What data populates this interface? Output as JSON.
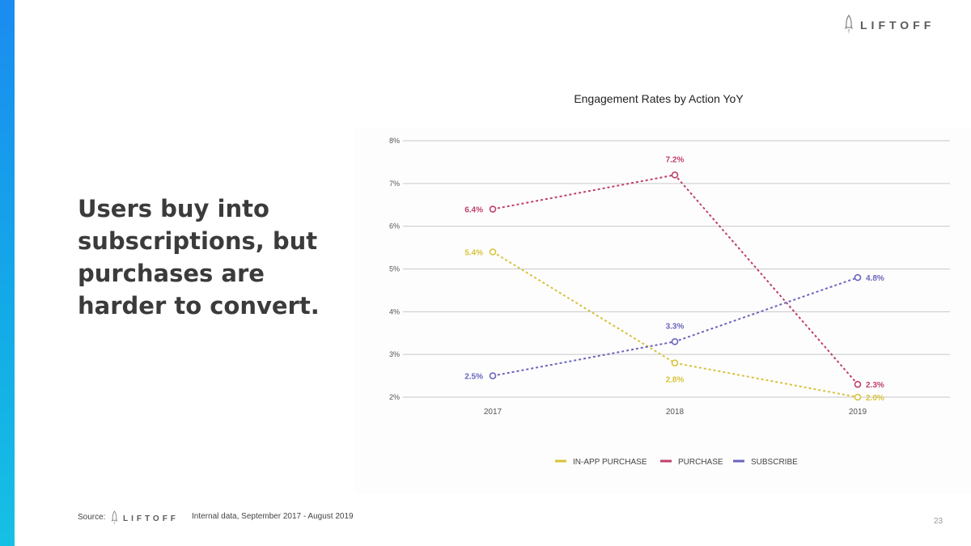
{
  "brand": {
    "name": "LIFTOFF",
    "accent_color": "#1b8cf0"
  },
  "headline": "Users buy into subscriptions, but purchases are harder to convert.",
  "chart_data": {
    "type": "line",
    "title": "Engagement Rates by Action YoY",
    "categories": [
      "2017",
      "2018",
      "2019"
    ],
    "ylim": [
      2,
      8
    ],
    "y_ticks": [
      "2%",
      "3%",
      "4%",
      "5%",
      "6%",
      "7%",
      "8%"
    ],
    "y_tick_values": [
      2,
      3,
      4,
      5,
      6,
      7,
      8
    ],
    "grid": true,
    "legend_position": "bottom-center",
    "series": [
      {
        "name": "IN-APP PURCHASE",
        "color": "#d8c23c",
        "values": [
          5.4,
          2.8,
          2.0
        ],
        "labels": [
          "5.4%",
          "2.8%",
          "2.0%"
        ]
      },
      {
        "name": "PURCHASE",
        "color": "#c04067",
        "values": [
          6.4,
          7.2,
          2.3
        ],
        "labels": [
          "6.4%",
          "7.2%",
          "2.3%"
        ]
      },
      {
        "name": "SUBSCRIBE",
        "color": "#6a65bd",
        "values": [
          2.5,
          3.3,
          4.8
        ],
        "labels": [
          "2.5%",
          "3.3%",
          "4.8%"
        ]
      }
    ]
  },
  "footer": {
    "source_label": "Source:",
    "source_text": "Internal data, September 2017 - August 2019",
    "page_number": "23"
  }
}
